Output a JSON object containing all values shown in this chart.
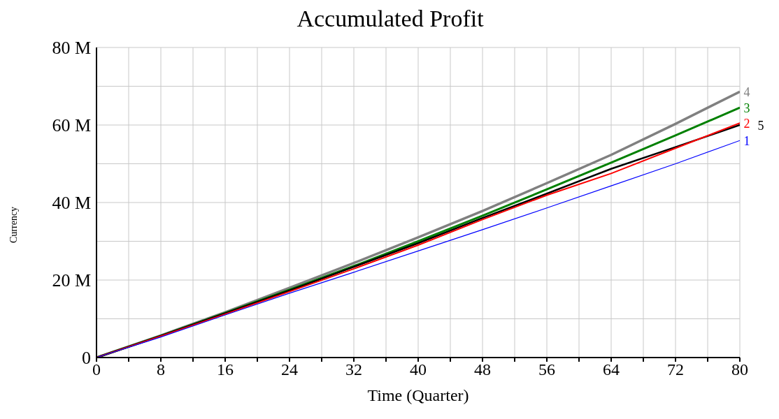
{
  "chart_data": {
    "type": "line",
    "title": "Accumulated Profit",
    "xlabel": "Time (Quarter)",
    "ylabel": "Currency",
    "x": [
      0,
      8,
      16,
      24,
      32,
      40,
      48,
      56,
      64,
      72,
      80
    ],
    "series": [
      {
        "name": "1",
        "color": "#0000ff",
        "values": [
          0,
          5.3,
          11,
          16.6,
          22,
          27.5,
          33,
          38.6,
          44.3,
          50,
          56
        ]
      },
      {
        "name": "2",
        "color": "#ff0000",
        "values": [
          0,
          5.5,
          11.2,
          17,
          22.9,
          29,
          35.6,
          41.9,
          47.5,
          54,
          60.5
        ]
      },
      {
        "name": "3",
        "color": "#008000",
        "values": [
          0,
          5.6,
          11.5,
          17.5,
          23.6,
          30,
          36.6,
          43.4,
          50.3,
          57.3,
          64.5
        ]
      },
      {
        "name": "4",
        "color": "#808080",
        "values": [
          0,
          5.7,
          11.7,
          18,
          24.4,
          31,
          37.8,
          45,
          52.3,
          60.3,
          68.6
        ]
      },
      {
        "name": "5",
        "color": "#000000",
        "values": [
          0,
          5.6,
          11.4,
          17.3,
          23.4,
          29.5,
          36,
          42.3,
          48.7,
          54.3,
          60
        ]
      }
    ],
    "xlim": [
      0,
      80
    ],
    "xticks": [
      0,
      {
        "value": 4,
        "label": null
      },
      8,
      {
        "value": 12,
        "label": null
      },
      16,
      {
        "value": 20,
        "label": null
      },
      24,
      {
        "value": 28,
        "label": null
      },
      32,
      {
        "value": 36,
        "label": null
      },
      40,
      {
        "value": 44,
        "label": null
      },
      48,
      {
        "value": 52,
        "label": null
      },
      56,
      {
        "value": 60,
        "label": null
      },
      64,
      {
        "value": 68,
        "label": null
      },
      72,
      {
        "value": 76,
        "label": null
      },
      80
    ],
    "ylim": [
      0,
      80
    ],
    "yticks": [
      {
        "value": 0,
        "label": "0"
      },
      {
        "value": 10,
        "label": null
      },
      {
        "value": 20,
        "label": "20 M"
      },
      {
        "value": 30,
        "label": null
      },
      {
        "value": 40,
        "label": "40 M"
      },
      {
        "value": 50,
        "label": null
      },
      {
        "value": 60,
        "label": "60 M"
      },
      {
        "value": 70,
        "label": null
      },
      {
        "value": 80,
        "label": "80 M"
      }
    ],
    "grid": true,
    "legend": false,
    "marker": "none",
    "line_style": "solid"
  }
}
